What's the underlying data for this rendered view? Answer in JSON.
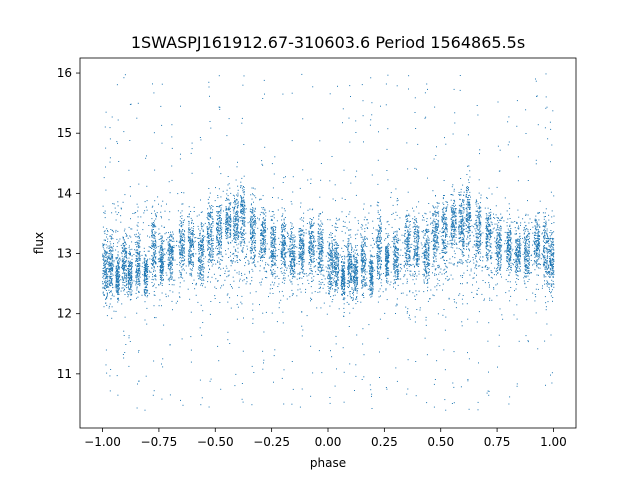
{
  "chart_data": {
    "type": "scatter",
    "title": "1SWASPJ161912.67-310603.6 Period 1564865.5s",
    "xlabel": "phase",
    "ylabel": "flux",
    "xlim": [
      -1.1,
      1.1
    ],
    "ylim": [
      10.1,
      16.25
    ],
    "x_ticks": [
      -1.0,
      -0.75,
      -0.5,
      -0.25,
      0.0,
      0.25,
      0.5,
      0.75,
      1.0
    ],
    "x_tick_labels": [
      "−1.00",
      "−0.75",
      "−0.50",
      "−0.25",
      "0.00",
      "0.25",
      "0.50",
      "0.75",
      "1.00"
    ],
    "y_ticks": [
      11,
      12,
      13,
      14,
      15,
      16
    ],
    "y_tick_labels": [
      "11",
      "12",
      "13",
      "14",
      "15",
      "16"
    ],
    "grid": false,
    "marker_color": "#1f77b4",
    "series": [
      {
        "clusters": [
          {
            "x": -0.99,
            "y": 12.75,
            "spread": 0.45,
            "width": 0.012
          },
          {
            "x": -0.965,
            "y": 12.8,
            "spread": 0.4,
            "width": 0.01
          },
          {
            "x": -0.935,
            "y": 12.6,
            "spread": 0.3,
            "width": 0.008
          },
          {
            "x": -0.905,
            "y": 12.8,
            "spread": 0.4,
            "width": 0.01
          },
          {
            "x": -0.88,
            "y": 12.65,
            "spread": 0.3,
            "width": 0.01
          },
          {
            "x": -0.845,
            "y": 12.85,
            "spread": 0.4,
            "width": 0.01
          },
          {
            "x": -0.81,
            "y": 12.65,
            "spread": 0.3,
            "width": 0.008
          },
          {
            "x": -0.775,
            "y": 13.1,
            "spread": 0.5,
            "width": 0.01
          },
          {
            "x": -0.74,
            "y": 12.9,
            "spread": 0.3,
            "width": 0.008
          },
          {
            "x": -0.7,
            "y": 12.95,
            "spread": 0.35,
            "width": 0.012
          },
          {
            "x": -0.65,
            "y": 13.15,
            "spread": 0.4,
            "width": 0.012
          },
          {
            "x": -0.61,
            "y": 13.15,
            "spread": 0.4,
            "width": 0.012
          },
          {
            "x": -0.565,
            "y": 13.0,
            "spread": 0.4,
            "width": 0.012
          },
          {
            "x": -0.525,
            "y": 13.35,
            "spread": 0.45,
            "width": 0.014
          },
          {
            "x": -0.485,
            "y": 13.4,
            "spread": 0.45,
            "width": 0.012
          },
          {
            "x": -0.445,
            "y": 13.55,
            "spread": 0.4,
            "width": 0.012
          },
          {
            "x": -0.41,
            "y": 13.5,
            "spread": 0.45,
            "width": 0.012
          },
          {
            "x": -0.38,
            "y": 13.65,
            "spread": 0.45,
            "width": 0.01
          },
          {
            "x": -0.335,
            "y": 13.4,
            "spread": 0.45,
            "width": 0.012
          },
          {
            "x": -0.29,
            "y": 13.3,
            "spread": 0.4,
            "width": 0.012
          },
          {
            "x": -0.245,
            "y": 13.15,
            "spread": 0.4,
            "width": 0.012
          },
          {
            "x": -0.2,
            "y": 13.15,
            "spread": 0.35,
            "width": 0.01
          },
          {
            "x": -0.16,
            "y": 13.0,
            "spread": 0.35,
            "width": 0.012
          },
          {
            "x": -0.12,
            "y": 13.05,
            "spread": 0.35,
            "width": 0.012
          },
          {
            "x": -0.075,
            "y": 13.15,
            "spread": 0.35,
            "width": 0.012
          },
          {
            "x": -0.035,
            "y": 13.05,
            "spread": 0.45,
            "width": 0.012
          },
          {
            "x": 0.01,
            "y": 12.8,
            "spread": 0.45,
            "width": 0.012
          },
          {
            "x": 0.035,
            "y": 12.8,
            "spread": 0.4,
            "width": 0.01
          },
          {
            "x": 0.065,
            "y": 12.6,
            "spread": 0.3,
            "width": 0.008
          },
          {
            "x": 0.095,
            "y": 12.8,
            "spread": 0.4,
            "width": 0.01
          },
          {
            "x": 0.12,
            "y": 12.65,
            "spread": 0.3,
            "width": 0.01
          },
          {
            "x": 0.155,
            "y": 12.85,
            "spread": 0.4,
            "width": 0.01
          },
          {
            "x": 0.19,
            "y": 12.65,
            "spread": 0.3,
            "width": 0.008
          },
          {
            "x": 0.225,
            "y": 13.1,
            "spread": 0.5,
            "width": 0.01
          },
          {
            "x": 0.26,
            "y": 12.9,
            "spread": 0.3,
            "width": 0.008
          },
          {
            "x": 0.3,
            "y": 12.95,
            "spread": 0.35,
            "width": 0.012
          },
          {
            "x": 0.35,
            "y": 13.15,
            "spread": 0.4,
            "width": 0.012
          },
          {
            "x": 0.39,
            "y": 13.15,
            "spread": 0.4,
            "width": 0.012
          },
          {
            "x": 0.435,
            "y": 13.0,
            "spread": 0.4,
            "width": 0.012
          },
          {
            "x": 0.475,
            "y": 13.35,
            "spread": 0.45,
            "width": 0.014
          },
          {
            "x": 0.515,
            "y": 13.4,
            "spread": 0.45,
            "width": 0.012
          },
          {
            "x": 0.555,
            "y": 13.55,
            "spread": 0.4,
            "width": 0.012
          },
          {
            "x": 0.59,
            "y": 13.5,
            "spread": 0.45,
            "width": 0.012
          },
          {
            "x": 0.62,
            "y": 13.65,
            "spread": 0.45,
            "width": 0.01
          },
          {
            "x": 0.665,
            "y": 13.4,
            "spread": 0.45,
            "width": 0.012
          },
          {
            "x": 0.71,
            "y": 13.3,
            "spread": 0.4,
            "width": 0.012
          },
          {
            "x": 0.755,
            "y": 13.15,
            "spread": 0.4,
            "width": 0.012
          },
          {
            "x": 0.8,
            "y": 13.15,
            "spread": 0.35,
            "width": 0.01
          },
          {
            "x": 0.84,
            "y": 13.0,
            "spread": 0.35,
            "width": 0.012
          },
          {
            "x": 0.88,
            "y": 13.05,
            "spread": 0.35,
            "width": 0.012
          },
          {
            "x": 0.925,
            "y": 13.15,
            "spread": 0.35,
            "width": 0.012
          },
          {
            "x": 0.965,
            "y": 13.05,
            "spread": 0.45,
            "width": 0.012
          },
          {
            "x": 0.99,
            "y": 12.9,
            "spread": 0.45,
            "width": 0.01
          }
        ],
        "outlier_range": [
          10.4,
          16.0
        ]
      }
    ]
  }
}
